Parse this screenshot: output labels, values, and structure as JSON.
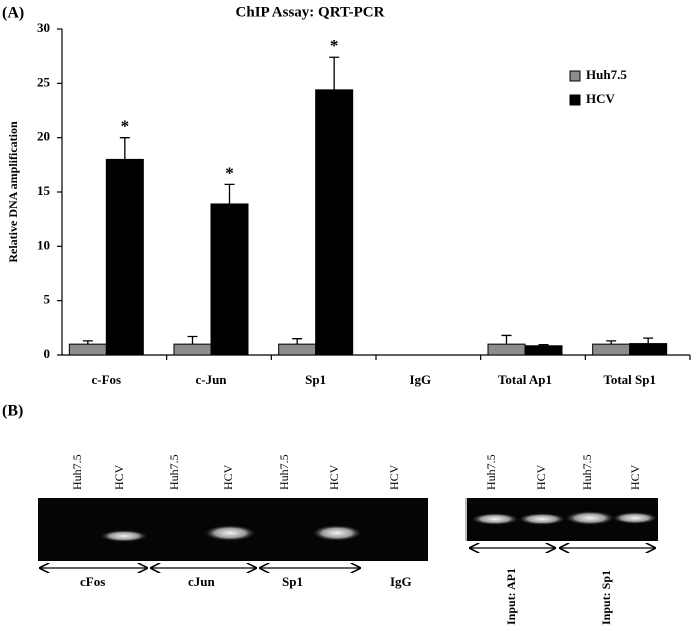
{
  "chart_data": {
    "type": "bar",
    "panel_label": "(A)",
    "title": "ChIP Assay: QRT-PCR",
    "y_label": "Relative DNA amplification",
    "categories": [
      "c-Fos",
      "c-Jun",
      "Sp1",
      "IgG",
      "Total Ap1",
      "Total Sp1"
    ],
    "series": [
      {
        "name": "Huh7.5",
        "color": "#8c8c8c",
        "values": [
          1.0,
          1.0,
          1.0,
          0,
          1.0,
          1.0
        ],
        "errors": [
          0.3,
          0.7,
          0.5,
          null,
          0.8,
          0.3
        ]
      },
      {
        "name": "HCV",
        "color": "#000000",
        "values": [
          18.0,
          13.9,
          24.4,
          0,
          0.85,
          1.05
        ],
        "errors": [
          2.0,
          1.8,
          3.0,
          null,
          0.1,
          0.5
        ],
        "annotations": [
          "*",
          "*",
          "*",
          null,
          null,
          null
        ]
      }
    ],
    "ylim": [
      0,
      30
    ],
    "yticks": [
      0,
      5,
      10,
      15,
      20,
      25,
      30
    ],
    "legend": "top-right"
  },
  "panel_b": {
    "panel_label": "(B)",
    "left_gel_lanes": [
      "Huh7.5",
      "HCV",
      "Huh7.5",
      "HCV",
      "Huh7.5",
      "HCV",
      "HCV"
    ],
    "left_gel_groups": [
      "cFos",
      "cJun",
      "Sp1",
      "IgG"
    ],
    "right_gel_lanes": [
      "Huh7.5",
      "HCV",
      "Huh7.5",
      "HCV"
    ],
    "right_gel_groups": [
      "Input: AP1",
      "Input: Sp1"
    ]
  }
}
